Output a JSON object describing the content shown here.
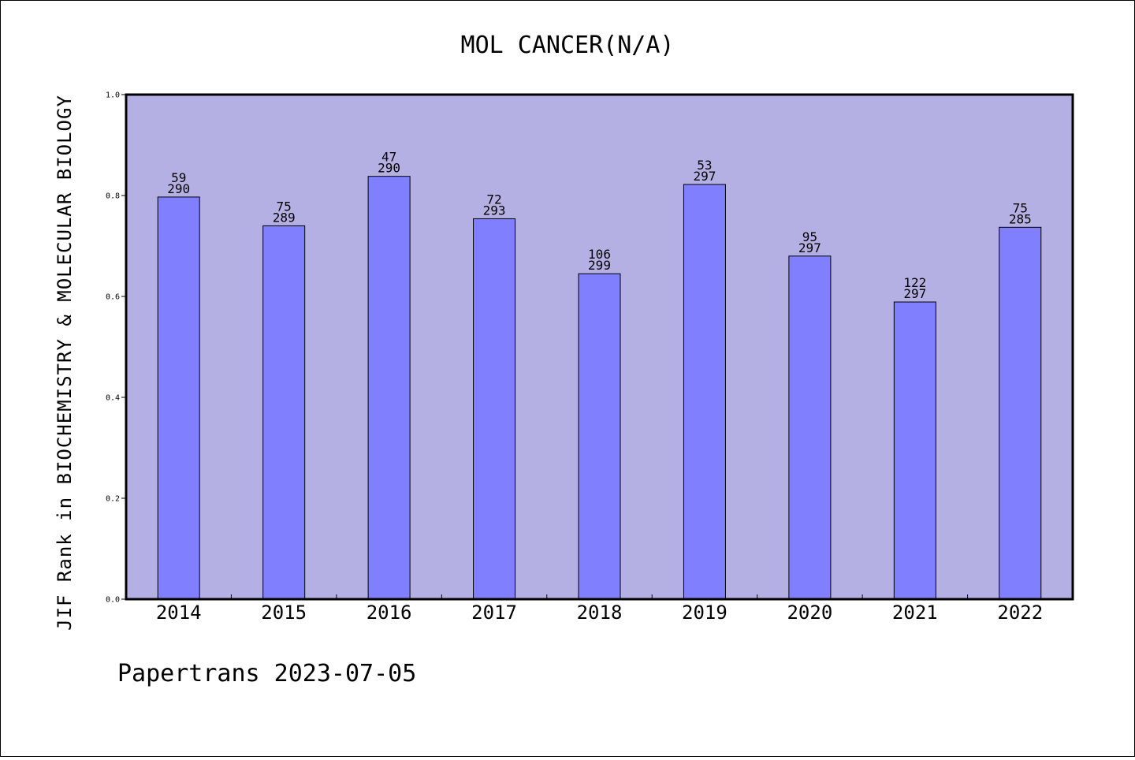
{
  "chart_data": {
    "type": "bar",
    "title": "MOL CANCER(N/A)",
    "xlabel": "",
    "ylabel": "JIF Rank in BIOCHEMISTRY & MOLECULAR BIOLOGY",
    "ylim": [
      0,
      1.0
    ],
    "yticks": [
      "0.0",
      "0.2",
      "0.4",
      "0.6",
      "0.8",
      "1.0"
    ],
    "categories": [
      "2014",
      "2015",
      "2016",
      "2017",
      "2018",
      "2019",
      "2020",
      "2021",
      "2022"
    ],
    "values": [
      0.797,
      0.74,
      0.838,
      0.754,
      0.645,
      0.822,
      0.68,
      0.589,
      0.737
    ],
    "rank_labels": [
      "59",
      "75",
      "47",
      "72",
      "106",
      "53",
      "95",
      "122",
      "75"
    ],
    "total_labels": [
      "290",
      "289",
      "290",
      "293",
      "299",
      "297",
      "297",
      "297",
      "285"
    ],
    "grid": false,
    "colors": {
      "plot_background": "#b5b0e3",
      "bar_fill": "#8080ff",
      "bar_stroke": "#000000"
    }
  },
  "footer": {
    "text": "Papertrans 2023-07-05"
  }
}
